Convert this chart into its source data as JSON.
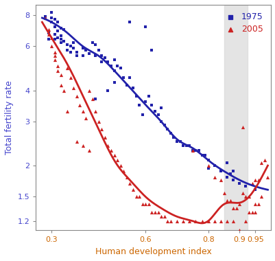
{
  "title": "",
  "xlabel": "Human development index",
  "ylabel": "Total fertility rate",
  "xlabel_color": "#cc6600",
  "ylabel_color": "#4444cc",
  "xlim": [
    0.25,
    1.0
  ],
  "ylim": [
    1.1,
    8.5
  ],
  "yticks": [
    1.2,
    1.5,
    2.0,
    3.0,
    4.0,
    6.0,
    8.0
  ],
  "xticks": [
    0.3,
    0.6,
    0.8,
    0.9,
    0.95
  ],
  "gray_band": [
    0.85,
    0.925
  ],
  "blue_color": "#2222aa",
  "red_color": "#cc2222",
  "legend_1975": "1975",
  "legend_2005": "2005",
  "pts_1975": [
    [
      0.28,
      7.9
    ],
    [
      0.29,
      6.8
    ],
    [
      0.29,
      6.4
    ],
    [
      0.3,
      8.2
    ],
    [
      0.3,
      7.8
    ],
    [
      0.3,
      7.5
    ],
    [
      0.31,
      7.7
    ],
    [
      0.31,
      7.2
    ],
    [
      0.31,
      6.7
    ],
    [
      0.31,
      6.4
    ],
    [
      0.32,
      7.5
    ],
    [
      0.32,
      6.9
    ],
    [
      0.32,
      6.5
    ],
    [
      0.33,
      7.1
    ],
    [
      0.33,
      6.6
    ],
    [
      0.33,
      6.4
    ],
    [
      0.33,
      6.2
    ],
    [
      0.34,
      7.0
    ],
    [
      0.34,
      6.3
    ],
    [
      0.35,
      6.1
    ],
    [
      0.35,
      5.8
    ],
    [
      0.36,
      6.0
    ],
    [
      0.36,
      5.7
    ],
    [
      0.37,
      6.2
    ],
    [
      0.37,
      5.9
    ],
    [
      0.38,
      5.7
    ],
    [
      0.38,
      5.5
    ],
    [
      0.4,
      5.9
    ],
    [
      0.4,
      5.5
    ],
    [
      0.41,
      5.8
    ],
    [
      0.42,
      5.6
    ],
    [
      0.43,
      6.2
    ],
    [
      0.44,
      6.1
    ],
    [
      0.44,
      5.5
    ],
    [
      0.45,
      5.8
    ],
    [
      0.46,
      5.5
    ],
    [
      0.46,
      5.2
    ],
    [
      0.47,
      5.4
    ],
    [
      0.48,
      5.2
    ],
    [
      0.49,
      5.0
    ],
    [
      0.5,
      4.8
    ],
    [
      0.5,
      5.3
    ],
    [
      0.51,
      5.0
    ],
    [
      0.52,
      4.9
    ],
    [
      0.53,
      4.5
    ],
    [
      0.54,
      4.2
    ],
    [
      0.55,
      4.5
    ],
    [
      0.56,
      4.1
    ],
    [
      0.57,
      3.8
    ],
    [
      0.58,
      3.5
    ],
    [
      0.59,
      3.2
    ],
    [
      0.6,
      3.6
    ],
    [
      0.61,
      3.8
    ],
    [
      0.62,
      3.5
    ],
    [
      0.63,
      3.3
    ],
    [
      0.64,
      3.2
    ],
    [
      0.65,
      3.0
    ],
    [
      0.66,
      2.9
    ],
    [
      0.67,
      2.8
    ],
    [
      0.68,
      2.7
    ],
    [
      0.69,
      2.6
    ],
    [
      0.7,
      2.5
    ],
    [
      0.71,
      2.5
    ],
    [
      0.72,
      2.4
    ],
    [
      0.73,
      2.4
    ],
    [
      0.74,
      2.4
    ],
    [
      0.75,
      2.3
    ],
    [
      0.76,
      2.3
    ],
    [
      0.77,
      2.3
    ],
    [
      0.78,
      2.2
    ],
    [
      0.79,
      2.2
    ],
    [
      0.8,
      2.1
    ],
    [
      0.82,
      2.0
    ],
    [
      0.84,
      1.9
    ],
    [
      0.86,
      1.8
    ],
    [
      0.88,
      1.75
    ],
    [
      0.9,
      1.7
    ],
    [
      0.92,
      1.65
    ],
    [
      0.95,
      1.6
    ],
    [
      0.55,
      7.5
    ],
    [
      0.6,
      7.2
    ],
    [
      0.62,
      5.8
    ],
    [
      0.65,
      3.4
    ],
    [
      0.5,
      4.3
    ],
    [
      0.48,
      4.0
    ],
    [
      0.44,
      3.7
    ],
    [
      0.8,
      1.95
    ],
    [
      0.82,
      2.0
    ],
    [
      0.86,
      2.05
    ],
    [
      0.88,
      1.9
    ],
    [
      0.87,
      1.85
    ]
  ],
  "pts_2005": [
    [
      0.28,
      7.8
    ],
    [
      0.29,
      7.0
    ],
    [
      0.29,
      6.7
    ],
    [
      0.3,
      6.5
    ],
    [
      0.3,
      6.0
    ],
    [
      0.31,
      5.7
    ],
    [
      0.31,
      5.5
    ],
    [
      0.31,
      5.3
    ],
    [
      0.32,
      5.0
    ],
    [
      0.32,
      4.8
    ],
    [
      0.33,
      4.6
    ],
    [
      0.33,
      4.2
    ],
    [
      0.34,
      4.0
    ],
    [
      0.35,
      4.9
    ],
    [
      0.36,
      4.5
    ],
    [
      0.37,
      4.1
    ],
    [
      0.38,
      3.8
    ],
    [
      0.39,
      3.5
    ],
    [
      0.4,
      3.3
    ],
    [
      0.41,
      3.1
    ],
    [
      0.42,
      4.0
    ],
    [
      0.43,
      3.7
    ],
    [
      0.44,
      3.3
    ],
    [
      0.45,
      3.0
    ],
    [
      0.46,
      2.8
    ],
    [
      0.47,
      2.6
    ],
    [
      0.48,
      2.4
    ],
    [
      0.49,
      2.3
    ],
    [
      0.5,
      2.2
    ],
    [
      0.51,
      2.1
    ],
    [
      0.52,
      2.0
    ],
    [
      0.53,
      1.9
    ],
    [
      0.54,
      1.8
    ],
    [
      0.55,
      1.7
    ],
    [
      0.56,
      1.6
    ],
    [
      0.57,
      1.5
    ],
    [
      0.58,
      1.5
    ],
    [
      0.59,
      1.4
    ],
    [
      0.6,
      1.4
    ],
    [
      0.61,
      1.4
    ],
    [
      0.62,
      1.3
    ],
    [
      0.63,
      1.3
    ],
    [
      0.64,
      1.3
    ],
    [
      0.65,
      1.25
    ],
    [
      0.66,
      1.25
    ],
    [
      0.67,
      1.2
    ],
    [
      0.68,
      1.2
    ],
    [
      0.7,
      1.2
    ],
    [
      0.72,
      1.2
    ],
    [
      0.74,
      1.2
    ],
    [
      0.76,
      1.2
    ],
    [
      0.78,
      1.2
    ],
    [
      0.8,
      1.2
    ],
    [
      0.82,
      1.2
    ],
    [
      0.84,
      1.2
    ],
    [
      0.86,
      1.2
    ],
    [
      0.88,
      1.2
    ],
    [
      0.9,
      1.1
    ],
    [
      0.95,
      1.3
    ],
    [
      0.97,
      1.5
    ],
    [
      0.35,
      3.3
    ],
    [
      0.38,
      2.5
    ],
    [
      0.4,
      2.4
    ],
    [
      0.42,
      2.3
    ],
    [
      0.75,
      2.3
    ],
    [
      0.8,
      2.0
    ],
    [
      0.82,
      1.8
    ],
    [
      0.84,
      1.75
    ],
    [
      0.85,
      1.55
    ],
    [
      0.86,
      1.45
    ],
    [
      0.87,
      1.45
    ],
    [
      0.88,
      1.35
    ],
    [
      0.89,
      1.35
    ],
    [
      0.9,
      1.4
    ],
    [
      0.91,
      1.55
    ],
    [
      0.92,
      1.5
    ],
    [
      0.93,
      1.5
    ],
    [
      0.94,
      1.7
    ],
    [
      0.95,
      1.75
    ],
    [
      0.96,
      1.75
    ],
    [
      0.97,
      2.05
    ],
    [
      0.98,
      2.1
    ],
    [
      0.99,
      1.8
    ],
    [
      0.91,
      2.85
    ],
    [
      0.92,
      1.2
    ],
    [
      0.93,
      1.3
    ],
    [
      0.94,
      1.3
    ],
    [
      0.95,
      1.4
    ],
    [
      0.96,
      1.4
    ]
  ],
  "curve_1975_x": [
    0.27,
    0.3,
    0.35,
    0.4,
    0.45,
    0.5,
    0.55,
    0.6,
    0.65,
    0.7,
    0.75,
    0.8,
    0.85,
    0.9,
    0.95,
    0.99
  ],
  "curve_1975_y": [
    7.8,
    7.5,
    6.8,
    6.0,
    5.5,
    4.8,
    4.1,
    3.5,
    3.0,
    2.55,
    2.35,
    2.1,
    1.9,
    1.75,
    1.65,
    1.6
  ],
  "curve_2005_x": [
    0.27,
    0.3,
    0.35,
    0.4,
    0.45,
    0.5,
    0.55,
    0.6,
    0.65,
    0.7,
    0.75,
    0.8,
    0.85,
    0.88,
    0.9,
    0.93,
    0.96,
    0.99
  ],
  "curve_2005_y": [
    7.5,
    6.5,
    5.1,
    3.8,
    2.8,
    2.1,
    1.75,
    1.5,
    1.35,
    1.25,
    1.2,
    1.2,
    1.4,
    1.42,
    1.42,
    1.5,
    1.7,
    2.0
  ],
  "background_color": "#ffffff"
}
